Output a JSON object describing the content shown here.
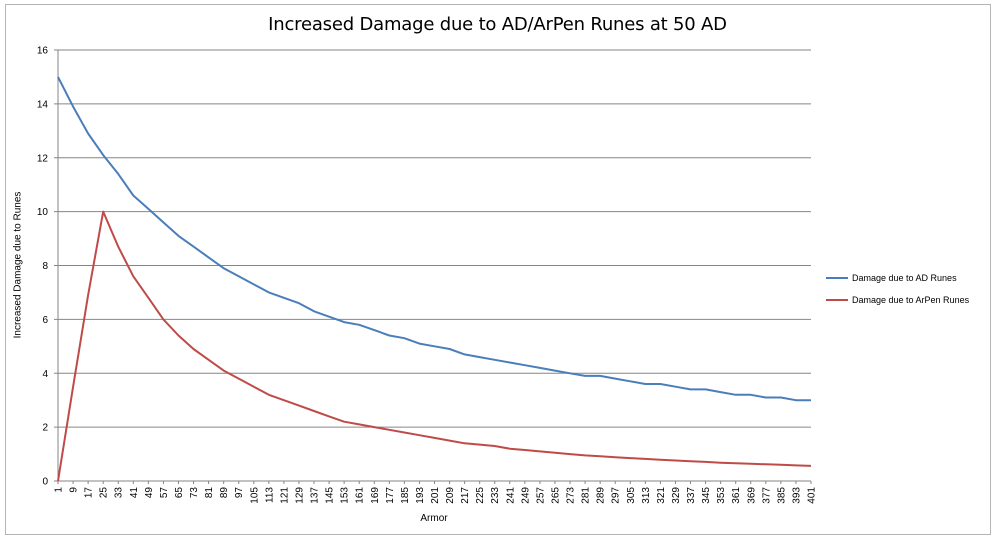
{
  "chart_data": {
    "type": "line",
    "title": "Increased Damage due to AD/ArPen Runes at 50 AD",
    "xlabel": "Armor",
    "ylabel": "Increased Damage due to Runes",
    "ylim": [
      0,
      16
    ],
    "yticks": [
      0,
      2,
      4,
      6,
      8,
      10,
      12,
      14,
      16
    ],
    "grid": true,
    "legend_position": "right",
    "x": [
      1,
      9,
      17,
      25,
      33,
      41,
      49,
      57,
      65,
      73,
      81,
      89,
      97,
      105,
      113,
      121,
      129,
      137,
      145,
      153,
      161,
      169,
      177,
      185,
      193,
      201,
      209,
      217,
      225,
      233,
      241,
      249,
      257,
      265,
      273,
      281,
      289,
      297,
      305,
      313,
      321,
      329,
      337,
      345,
      353,
      361,
      369,
      377,
      385,
      393,
      401
    ],
    "series": [
      {
        "name": "Damage due to AD Runes",
        "color": "#4a7ebb",
        "values": [
          15.0,
          13.9,
          12.9,
          12.1,
          11.4,
          10.6,
          10.1,
          9.6,
          9.1,
          8.7,
          8.3,
          7.9,
          7.6,
          7.3,
          7.0,
          6.8,
          6.6,
          6.3,
          6.1,
          5.9,
          5.8,
          5.6,
          5.4,
          5.3,
          5.1,
          5.0,
          4.9,
          4.7,
          4.6,
          4.5,
          4.4,
          4.3,
          4.2,
          4.1,
          4.0,
          3.9,
          3.9,
          3.8,
          3.7,
          3.6,
          3.6,
          3.5,
          3.4,
          3.4,
          3.3,
          3.2,
          3.2,
          3.1,
          3.1,
          3.0,
          3.0
        ]
      },
      {
        "name": "Damage due to ArPen Runes",
        "color": "#be4b48",
        "values": [
          0.0,
          3.5,
          6.9,
          10.0,
          8.7,
          7.6,
          6.8,
          6.0,
          5.4,
          4.9,
          4.5,
          4.1,
          3.8,
          3.5,
          3.2,
          3.0,
          2.8,
          2.6,
          2.4,
          2.2,
          2.1,
          2.0,
          1.9,
          1.8,
          1.7,
          1.6,
          1.5,
          1.4,
          1.35,
          1.3,
          1.2,
          1.15,
          1.1,
          1.05,
          1.0,
          0.95,
          0.92,
          0.88,
          0.85,
          0.82,
          0.79,
          0.76,
          0.73,
          0.71,
          0.68,
          0.66,
          0.64,
          0.62,
          0.6,
          0.58,
          0.56
        ]
      }
    ]
  },
  "labels": {
    "title": "Increased Damage due to AD/ArPen Runes at 50 AD",
    "xlabel": "Armor",
    "ylabel": "Increased Damage due to Runes",
    "legend_ad": "Damage due to AD Runes",
    "legend_arpen": "Damage due to ArPen Runes"
  }
}
